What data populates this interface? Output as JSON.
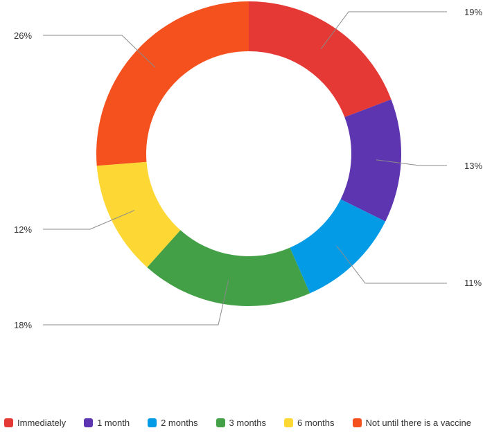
{
  "chart_data": {
    "type": "pie",
    "donut": true,
    "categories": [
      "Immediately",
      "1 month",
      "2 months",
      "3 months",
      "6 months",
      "Not until there is a vaccine"
    ],
    "values": [
      19,
      13,
      11,
      18,
      12,
      26
    ],
    "value_labels": [
      "19%",
      "13%",
      "11%",
      "18%",
      "12%",
      "26%"
    ],
    "colors": [
      "#e53935",
      "#5e35b1",
      "#039be5",
      "#43a047",
      "#fdd835",
      "#f4511e"
    ],
    "legend_position": "bottom",
    "start_angle": "12 o'clock, clockwise"
  }
}
